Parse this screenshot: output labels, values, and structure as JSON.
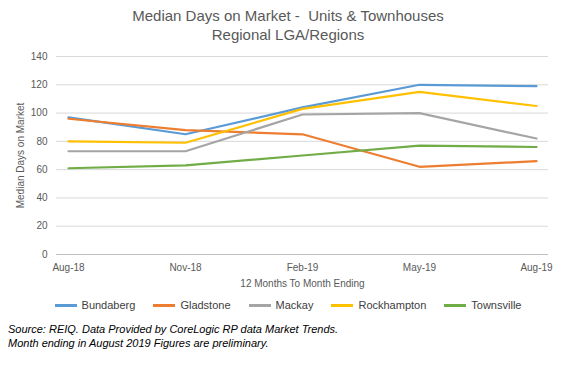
{
  "chart_data": {
    "type": "line",
    "title": "Median Days on Market -  Units & Townhouses",
    "subtitle": "Regional LGA/Regions",
    "x_label": "12 Months To Month Ending",
    "y_label": "Median Days on Market",
    "categories": [
      "Aug-18",
      "Nov-18",
      "Feb-19",
      "May-19",
      "Aug-19"
    ],
    "series": [
      {
        "name": "Bundaberg",
        "color": "#5b9bd5",
        "values": [
          97,
          85,
          104,
          120,
          119
        ]
      },
      {
        "name": "Gladstone",
        "color": "#ed7d31",
        "values": [
          96,
          88,
          85,
          62,
          66
        ]
      },
      {
        "name": "Mackay",
        "color": "#a5a5a5",
        "values": [
          73,
          73,
          99,
          100,
          82
        ]
      },
      {
        "name": "Rockhampton",
        "color": "#ffc000",
        "values": [
          80,
          79,
          103,
          115,
          105
        ]
      },
      {
        "name": "Townsville",
        "color": "#70ad47",
        "values": [
          61,
          63,
          70,
          77,
          76
        ]
      }
    ],
    "ylim": [
      0,
      140
    ],
    "yticks": [
      0,
      20,
      40,
      60,
      80,
      100,
      120,
      140
    ],
    "grid": true,
    "legend": "bottom",
    "annotations": [
      "Source: REIQ. Data Provided by CoreLogic RP data Market Trends.",
      "Month ending in August 2019 Figures are preliminary."
    ]
  }
}
